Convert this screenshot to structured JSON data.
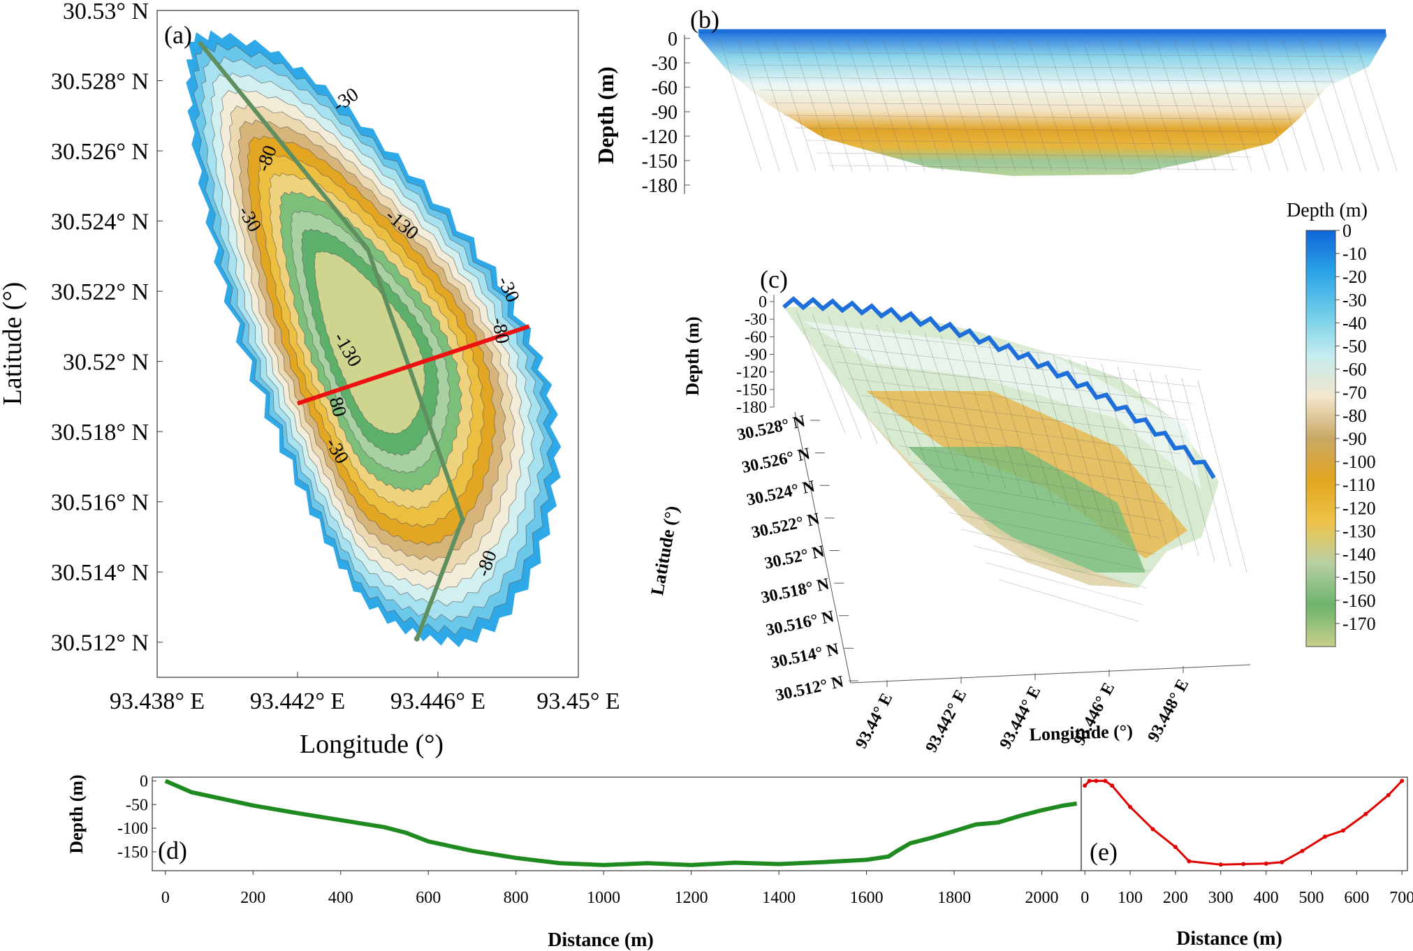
{
  "panels": {
    "a": "(a)",
    "b": "(b)",
    "c": "(c)",
    "d": "(d)",
    "e": "(e)"
  },
  "chart_data": [
    {
      "type": "contour",
      "panel": "(a)",
      "xlabel": "Longitude (°)",
      "ylabel": "Latitude (°)",
      "xticks": [
        "93.438° E",
        "93.442° E",
        "93.446° E",
        "93.45° E"
      ],
      "yticks": [
        "30.53° N",
        "30.528° N",
        "30.526° N",
        "30.524° N",
        "30.522° N",
        "30.52° N",
        "30.518° N",
        "30.516° N",
        "30.514° N",
        "30.512° N"
      ],
      "xlim": [
        93.438,
        93.45
      ],
      "ylim": [
        30.511,
        30.53
      ],
      "contour_labels": [
        "-30",
        "-80",
        "-30",
        "-130",
        "-30",
        "-80",
        "-130",
        "80",
        "-30",
        "-80"
      ],
      "profile_green": [
        [
          93.4392,
          30.5291
        ],
        [
          93.444,
          30.5232
        ],
        [
          93.4467,
          30.5155
        ],
        [
          93.4454,
          30.5121
        ]
      ],
      "profile_red": [
        [
          93.442,
          30.5188
        ],
        [
          93.4486,
          30.521
        ]
      ]
    },
    {
      "type": "surface-profile",
      "panel": "(b)",
      "ylabel": "Depth (m)",
      "yticks": [
        "0",
        "-30",
        "-60",
        "-90",
        "-120",
        "-150",
        "-180"
      ],
      "ylim": [
        -190,
        5
      ]
    },
    {
      "type": "surface-3d",
      "panel": "(c)",
      "zlabel": "Depth (m)",
      "zticks": [
        "0",
        "-30",
        "-60",
        "-90",
        "-120",
        "-150",
        "-180"
      ],
      "ylabel": "Latitude (°)",
      "yticks": [
        "30.528° N",
        "30.526° N",
        "30.524° N",
        "30.522° N",
        "30.52° N",
        "30.518° N",
        "30.516° N",
        "30.514° N",
        "30.512° N"
      ],
      "xlabel": "Longitude (°)",
      "xticks": [
        "93.44° E",
        "93.442° E",
        "93.444° E",
        "93.446° E",
        "93.448° E"
      ]
    },
    {
      "type": "colorbar",
      "title": "Depth (m)",
      "ticks": [
        "0",
        "-10",
        "-20",
        "-30",
        "-40",
        "-50",
        "-60",
        "-70",
        "-80",
        "-90",
        "-100",
        "-110",
        "-120",
        "-130",
        "-140",
        "-150",
        "-160",
        "-170"
      ],
      "range": [
        -180,
        0
      ],
      "colors": [
        "#1064d8",
        "#2aa4e8",
        "#6fcde8",
        "#c4ecef",
        "#f3e6cc",
        "#c9a865",
        "#e2a520",
        "#eec34a",
        "#b8cfa3",
        "#6cb46c",
        "#c9cf8c"
      ]
    },
    {
      "type": "line",
      "panel": "(d)",
      "xlabel": "Distance (m)",
      "ylabel": "Depth (m)",
      "xticks": [
        "0",
        "200",
        "400",
        "600",
        "800",
        "1000",
        "1200",
        "1400",
        "1600",
        "1800",
        "2000"
      ],
      "yticks": [
        "0",
        "-50",
        "-100",
        "-150"
      ],
      "xlim": [
        -30,
        2090
      ],
      "ylim": [
        -190,
        8
      ],
      "color": "#1f8a1f",
      "x": [
        0,
        30,
        60,
        100,
        150,
        200,
        300,
        400,
        500,
        550,
        600,
        650,
        700,
        800,
        900,
        1000,
        1100,
        1200,
        1300,
        1400,
        1500,
        1600,
        1650,
        1670,
        1700,
        1750,
        1800,
        1850,
        1900,
        1950,
        2000,
        2050,
        2080
      ],
      "y": [
        0,
        -12,
        -24,
        -32,
        -42,
        -52,
        -68,
        -83,
        -98,
        -110,
        -128,
        -138,
        -148,
        -163,
        -174,
        -178,
        -174,
        -178,
        -173,
        -176,
        -172,
        -167,
        -160,
        -148,
        -132,
        -120,
        -106,
        -92,
        -88,
        -74,
        -62,
        -52,
        -48
      ]
    },
    {
      "type": "line",
      "panel": "(e)",
      "xlabel": "Distance (m)",
      "xticks": [
        "0",
        "100",
        "200",
        "300",
        "400",
        "500",
        "600",
        "700"
      ],
      "ylim": [
        -190,
        8
      ],
      "xlim": [
        -8,
        712
      ],
      "color": "#e00000",
      "x": [
        0,
        10,
        25,
        45,
        60,
        100,
        150,
        200,
        230,
        300,
        350,
        400,
        435,
        480,
        530,
        570,
        620,
        670,
        700
      ],
      "y": [
        -10,
        0,
        0,
        0,
        -10,
        -55,
        -102,
        -140,
        -170,
        -177,
        -176,
        -175,
        -172,
        -148,
        -118,
        -105,
        -70,
        -30,
        0
      ]
    }
  ]
}
